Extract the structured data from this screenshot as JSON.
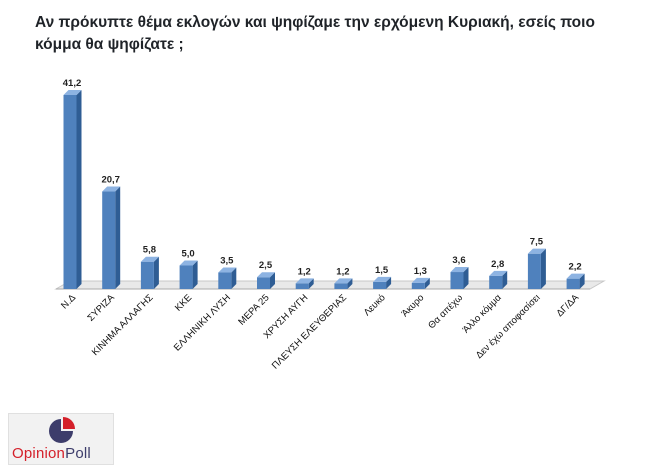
{
  "title": "Αν πρόκυπτε θέμα εκλογών και ψηφίζαμε την ερχόμενη Κυριακή, εσείς ποιο κόμμα θα ψηφίζατε ;",
  "logo": {
    "part1": "Opinion",
    "part2": "Poll"
  },
  "colors": {
    "bar": "#4f81bd",
    "bar_top": "#8db3e2",
    "bar_side": "#2f5d94",
    "floor": "#e9e9e9"
  },
  "chart_data": {
    "type": "bar",
    "title": "Αν πρόκυπτε θέμα εκλογών και ψηφίζαμε την ερχόμενη Κυριακή, εσείς ποιο κόμμα θα ψηφίζατε ;",
    "categories": [
      "Ν.Δ",
      "ΣΥΡΙΖΑ",
      "ΚΙΝΗΜΑ ΑΛΛΑΓΗΣ",
      "ΚΚΕ",
      "ΕΛΛΗΝΙΚΗ ΛΥΣΗ",
      "ΜΕΡΑ 25",
      "ΧΡΥΣΗ ΑΥΓΗ",
      "ΠΛΕΥΣΗ ΕΛΕΥΘΕΡΙΑΣ",
      "Λευκό",
      "Άκυρο",
      "Θα απέχω",
      "Άλλο κόμμα",
      "Δεν έχω αποφασίσει",
      "ΔΓ/ΔΑ"
    ],
    "values": [
      41.2,
      20.7,
      5.8,
      5.0,
      3.5,
      2.5,
      1.2,
      1.2,
      1.5,
      1.3,
      3.6,
      2.8,
      7.5,
      2.2
    ],
    "labels": [
      "41,2",
      "20,7",
      "5,8",
      "5,0",
      "3,5",
      "2,5",
      "1,2",
      "1,2",
      "1,5",
      "1,3",
      "3,6",
      "2,8",
      "7,5",
      "2,2"
    ],
    "xlabel": "",
    "ylabel": "",
    "grid": false,
    "legend": "none",
    "style": "3d-column"
  }
}
